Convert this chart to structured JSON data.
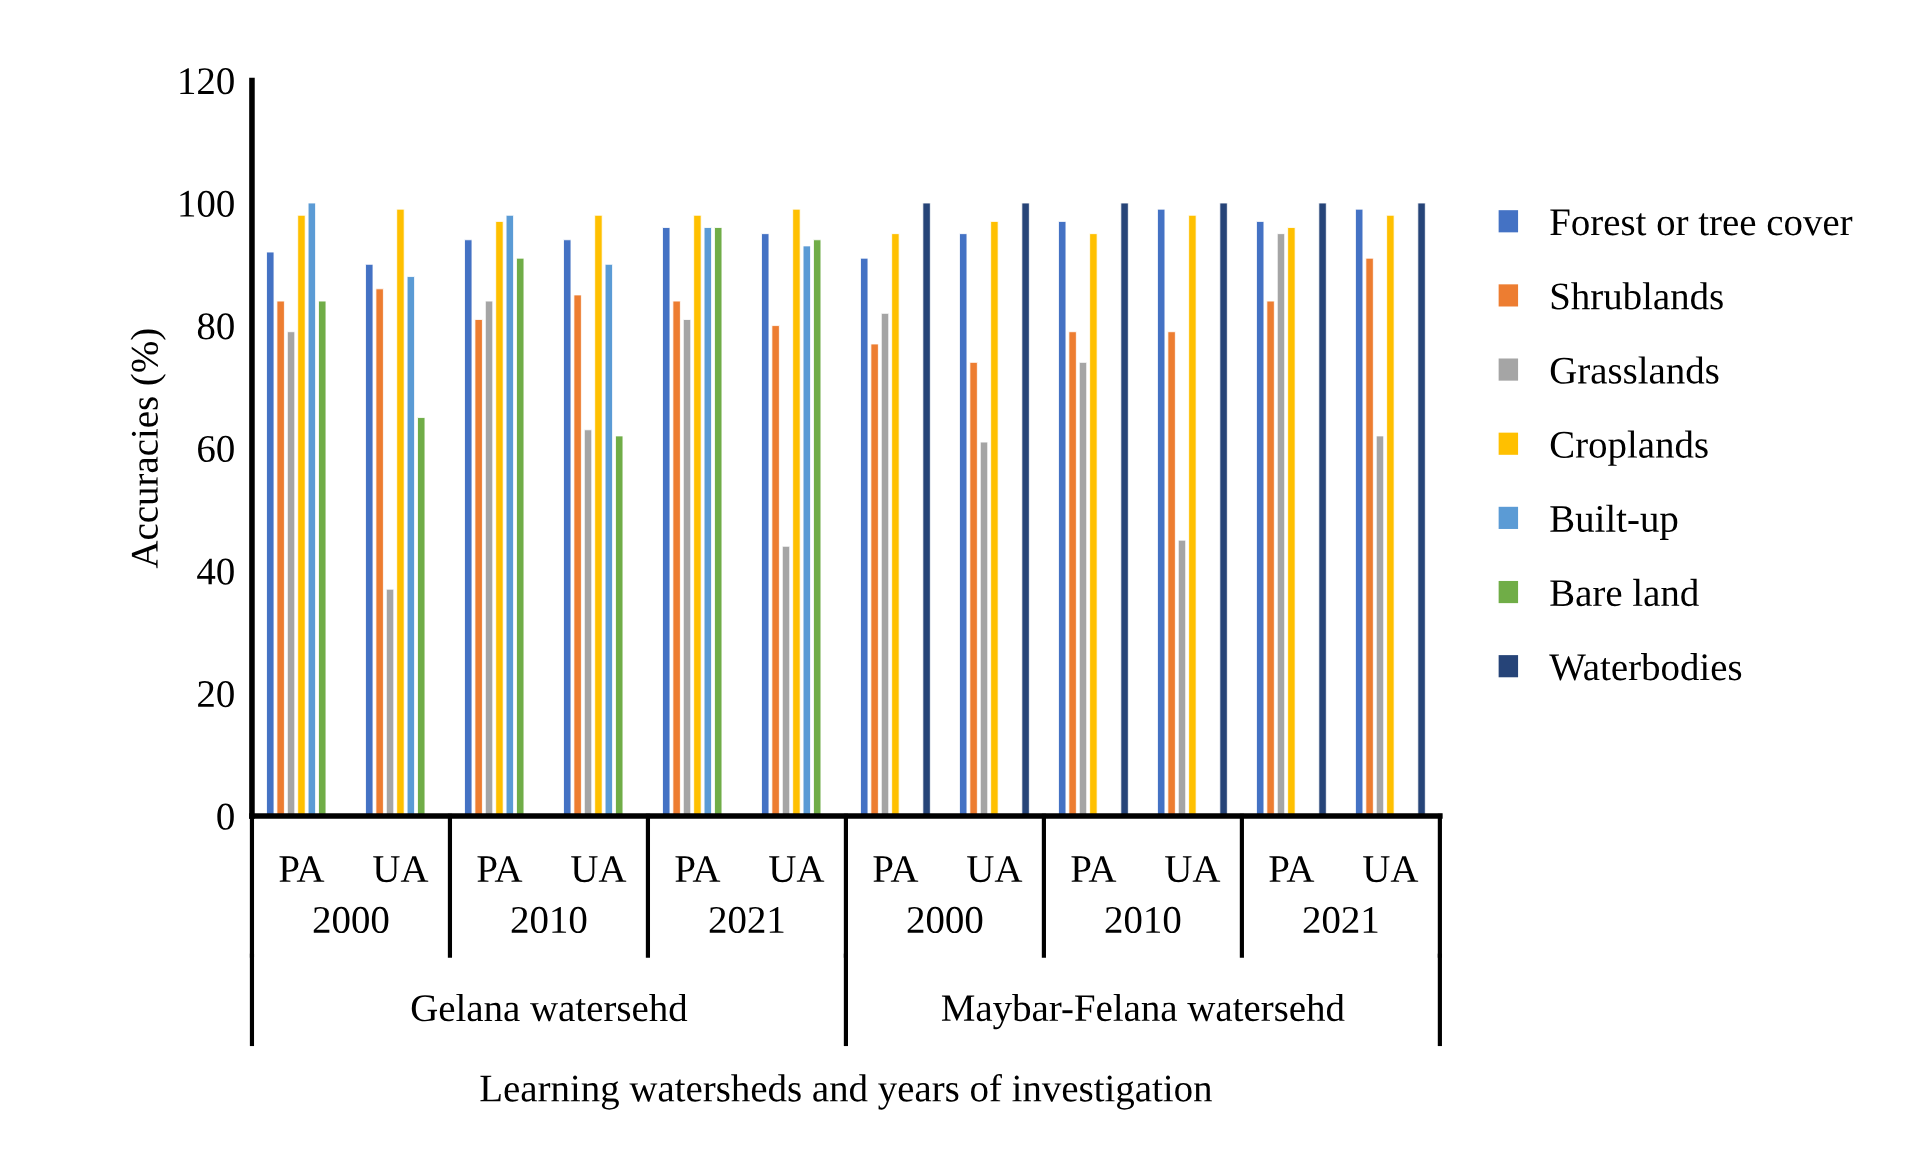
{
  "chart_data": {
    "type": "bar",
    "xlabel": "Learning watersheds and years of investigation",
    "ylabel": "Accuracies (%)",
    "categories": [
      "PA",
      "UA",
      "PA",
      "UA",
      "PA",
      "UA",
      "PA",
      "UA",
      "PA",
      "UA",
      "PA",
      "UA"
    ],
    "annotations": [
      "2000",
      "2010",
      "2021",
      "2000",
      "2010",
      "2021",
      "Gelana watersehd",
      "Maybar-Felana watersehd"
    ],
    "ylim": [
      0,
      120
    ],
    "yticks": [
      0,
      20,
      40,
      60,
      80,
      100,
      120
    ],
    "grid": false,
    "legend": "right",
    "series": [
      {
        "name": "Forest or tree cover",
        "color": "#4472c4",
        "values": [
          92,
          90,
          94,
          94,
          96,
          95,
          91,
          95,
          97,
          99,
          97,
          99
        ]
      },
      {
        "name": "Shrublands",
        "color": "#ed7d31",
        "values": [
          84,
          86,
          81,
          85,
          84,
          80,
          77,
          74,
          79,
          79,
          84,
          91
        ]
      },
      {
        "name": "Grasslands",
        "color": "#a5a5a5",
        "values": [
          79,
          37,
          84,
          63,
          81,
          44,
          82,
          61,
          74,
          45,
          95,
          62
        ]
      },
      {
        "name": "Croplands",
        "color": "#ffc000",
        "values": [
          98,
          99,
          97,
          98,
          98,
          99,
          95,
          97,
          95,
          98,
          96,
          98
        ]
      },
      {
        "name": "Built-up",
        "color": "#5b9bd5",
        "values": [
          100,
          88,
          98,
          90,
          96,
          93,
          null,
          null,
          null,
          null,
          null,
          null
        ]
      },
      {
        "name": "Bare land",
        "color": "#70ad47",
        "values": [
          84,
          65,
          91,
          62,
          96,
          94,
          null,
          null,
          null,
          null,
          null,
          null
        ]
      },
      {
        "name": "Waterbodies",
        "color": "#264478",
        "values": [
          null,
          null,
          null,
          null,
          null,
          null,
          100,
          100,
          100,
          100,
          100,
          100
        ]
      }
    ]
  }
}
